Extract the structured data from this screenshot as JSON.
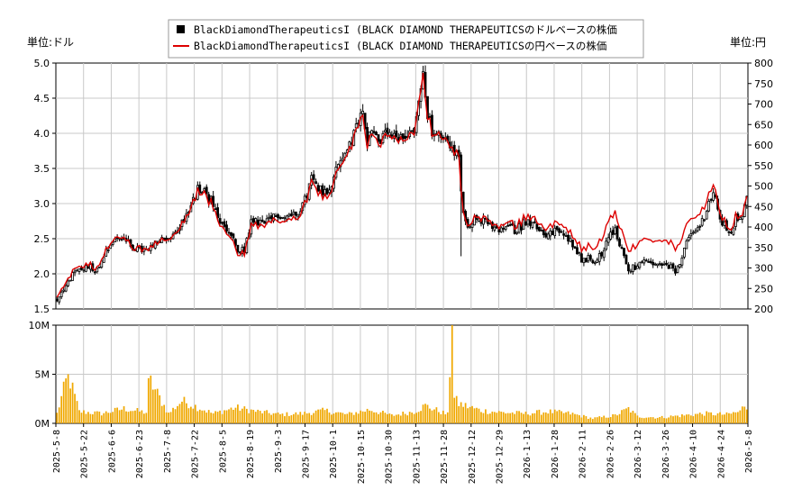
{
  "chart_data": {
    "type": "candlestick",
    "legend": {
      "placement": "top-center",
      "entries": [
        {
          "label": "BlackDiamondTherapeuticsI (BLACK DIAMOND THERAPEUTICSのドルベースの株価",
          "color": "#000000",
          "marker": "square"
        },
        {
          "label": "BlackDiamondTherapeuticsI (BLACK DIAMOND THERAPEUTICSの円ベースの株価",
          "color": "#dd0000",
          "marker": "line"
        }
      ]
    },
    "left_axis": {
      "unit_label": "単位:ドル",
      "ylim": [
        1.5,
        5.0
      ],
      "ticks": [
        "1.5",
        "2.0",
        "2.5",
        "3.0",
        "3.5",
        "4.0",
        "4.5",
        "5.0"
      ]
    },
    "right_axis": {
      "unit_label": "単位:円",
      "ylim": [
        200,
        800
      ],
      "ticks": [
        "200",
        "250",
        "300",
        "350",
        "400",
        "450",
        "500",
        "550",
        "600",
        "650",
        "700",
        "750",
        "800"
      ]
    },
    "volume_axis": {
      "ylim": [
        0,
        10000000
      ],
      "ticks": [
        "0M",
        "5M",
        "10M"
      ]
    },
    "x_ticks": [
      "2025-5-8",
      "2025-5-22",
      "2025-6-6",
      "2025-6-23",
      "2025-7-8",
      "2025-7-22",
      "2025-8-5",
      "2025-8-19",
      "2025-9-3",
      "2025-9-17",
      "2025-10-1",
      "2025-10-15",
      "2025-10-30",
      "2025-11-13",
      "2025-11-28",
      "2025-12-12",
      "2025-12-29",
      "2026-1-13",
      "2026-1-28",
      "2026-2-11",
      "2026-2-26",
      "2026-3-12",
      "2026-3-26",
      "2026-4-10",
      "2026-4-24",
      "2026-5-8"
    ],
    "grid": true,
    "colors": {
      "candle": "#000000",
      "yen_line": "#dd0000",
      "volume": "#f0a800",
      "grid": "#c8c8c8"
    },
    "price_usd_keypoints": [
      [
        0,
        1.65
      ],
      [
        3,
        1.75
      ],
      [
        6,
        1.95
      ],
      [
        10,
        2.05
      ],
      [
        14,
        2.12
      ],
      [
        18,
        2.05
      ],
      [
        22,
        2.35
      ],
      [
        26,
        2.5
      ],
      [
        30,
        2.52
      ],
      [
        33,
        2.38
      ],
      [
        37,
        2.35
      ],
      [
        41,
        2.32
      ],
      [
        44,
        2.42
      ],
      [
        48,
        2.5
      ],
      [
        52,
        2.52
      ],
      [
        56,
        2.75
      ],
      [
        60,
        2.95
      ],
      [
        63,
        3.2
      ],
      [
        66,
        3.15
      ],
      [
        69,
        3.05
      ],
      [
        72,
        2.78
      ],
      [
        75,
        2.65
      ],
      [
        78,
        2.55
      ],
      [
        81,
        2.3
      ],
      [
        84,
        2.35
      ],
      [
        87,
        2.72
      ],
      [
        90,
        2.75
      ],
      [
        93,
        2.7
      ],
      [
        96,
        2.78
      ],
      [
        99,
        2.85
      ],
      [
        102,
        2.8
      ],
      [
        105,
        2.85
      ],
      [
        108,
        2.9
      ],
      [
        111,
        3.05
      ],
      [
        114,
        3.35
      ],
      [
        117,
        3.25
      ],
      [
        120,
        3.15
      ],
      [
        123,
        3.3
      ],
      [
        126,
        3.55
      ],
      [
        129,
        3.75
      ],
      [
        132,
        3.85
      ],
      [
        135,
        4.2
      ],
      [
        137,
        4.3
      ],
      [
        139,
        3.9
      ],
      [
        141,
        4.1
      ],
      [
        143,
        3.95
      ],
      [
        145,
        3.9
      ],
      [
        148,
        3.98
      ],
      [
        151,
        3.92
      ],
      [
        154,
        3.9
      ],
      [
        157,
        4.02
      ],
      [
        160,
        4.05
      ],
      [
        163,
        4.6
      ],
      [
        164,
        4.85
      ],
      [
        166,
        4.3
      ],
      [
        168,
        4.0
      ],
      [
        171,
        3.95
      ],
      [
        174,
        3.88
      ],
      [
        177,
        3.85
      ],
      [
        180,
        3.6
      ],
      [
        182,
        2.85
      ],
      [
        184,
        2.72
      ],
      [
        187,
        2.78
      ],
      [
        190,
        2.75
      ],
      [
        193,
        2.72
      ],
      [
        196,
        2.62
      ],
      [
        199,
        2.6
      ],
      [
        202,
        2.72
      ],
      [
        205,
        2.62
      ],
      [
        208,
        2.68
      ],
      [
        211,
        2.78
      ],
      [
        214,
        2.68
      ],
      [
        217,
        2.62
      ],
      [
        220,
        2.55
      ],
      [
        223,
        2.6
      ],
      [
        226,
        2.58
      ],
      [
        229,
        2.5
      ],
      [
        232,
        2.4
      ],
      [
        235,
        2.2
      ],
      [
        238,
        2.22
      ],
      [
        241,
        2.2
      ],
      [
        244,
        2.28
      ],
      [
        247,
        2.55
      ],
      [
        250,
        2.6
      ],
      [
        253,
        2.35
      ],
      [
        256,
        2.05
      ],
      [
        259,
        2.1
      ],
      [
        262,
        2.15
      ],
      [
        265,
        2.15
      ],
      [
        268,
        2.12
      ],
      [
        271,
        2.12
      ],
      [
        274,
        2.1
      ],
      [
        277,
        2.05
      ],
      [
        280,
        2.25
      ],
      [
        283,
        2.5
      ],
      [
        286,
        2.6
      ],
      [
        289,
        2.75
      ],
      [
        292,
        3.0
      ],
      [
        294,
        3.15
      ],
      [
        296,
        2.9
      ],
      [
        298,
        2.72
      ],
      [
        300,
        2.65
      ],
      [
        302,
        2.62
      ],
      [
        304,
        2.78
      ],
      [
        307,
        2.85
      ],
      [
        309,
        3.05
      ]
    ],
    "yen_offsets_usd": [
      [
        0,
        0.05
      ],
      [
        40,
        0.0
      ],
      [
        80,
        -0.05
      ],
      [
        130,
        -0.07
      ],
      [
        175,
        0.0
      ],
      [
        200,
        0.05
      ],
      [
        230,
        0.12
      ],
      [
        245,
        0.22
      ],
      [
        260,
        0.3
      ],
      [
        275,
        0.35
      ],
      [
        285,
        0.2
      ],
      [
        300,
        0.05
      ],
      [
        309,
        0.0
      ]
    ],
    "volume_millions_keypoints": [
      [
        0,
        1.0
      ],
      [
        5,
        5.0
      ],
      [
        10,
        1.2
      ],
      [
        20,
        1.0
      ],
      [
        30,
        1.5
      ],
      [
        40,
        1.1
      ],
      [
        41,
        4.6
      ],
      [
        50,
        1.0
      ],
      [
        56,
        2.3
      ],
      [
        70,
        1.0
      ],
      [
        80,
        1.6
      ],
      [
        90,
        1.2
      ],
      [
        100,
        0.9
      ],
      [
        110,
        1.0
      ],
      [
        120,
        1.3
      ],
      [
        130,
        0.9
      ],
      [
        140,
        1.4
      ],
      [
        150,
        0.8
      ],
      [
        160,
        1.2
      ],
      [
        165,
        1.8
      ],
      [
        175,
        0.9
      ],
      [
        177,
        10.0
      ],
      [
        178,
        2.5
      ],
      [
        180,
        2.0
      ],
      [
        190,
        1.3
      ],
      [
        200,
        1.1
      ],
      [
        210,
        1.0
      ],
      [
        220,
        1.2
      ],
      [
        230,
        1.0
      ],
      [
        240,
        0.5
      ],
      [
        250,
        0.8
      ],
      [
        256,
        1.5
      ],
      [
        260,
        0.7
      ],
      [
        270,
        0.6
      ],
      [
        280,
        0.8
      ],
      [
        290,
        1.0
      ],
      [
        300,
        0.9
      ],
      [
        306,
        1.2
      ],
      [
        308,
        1.9
      ],
      [
        309,
        1.6
      ]
    ],
    "n_days": 310
  }
}
